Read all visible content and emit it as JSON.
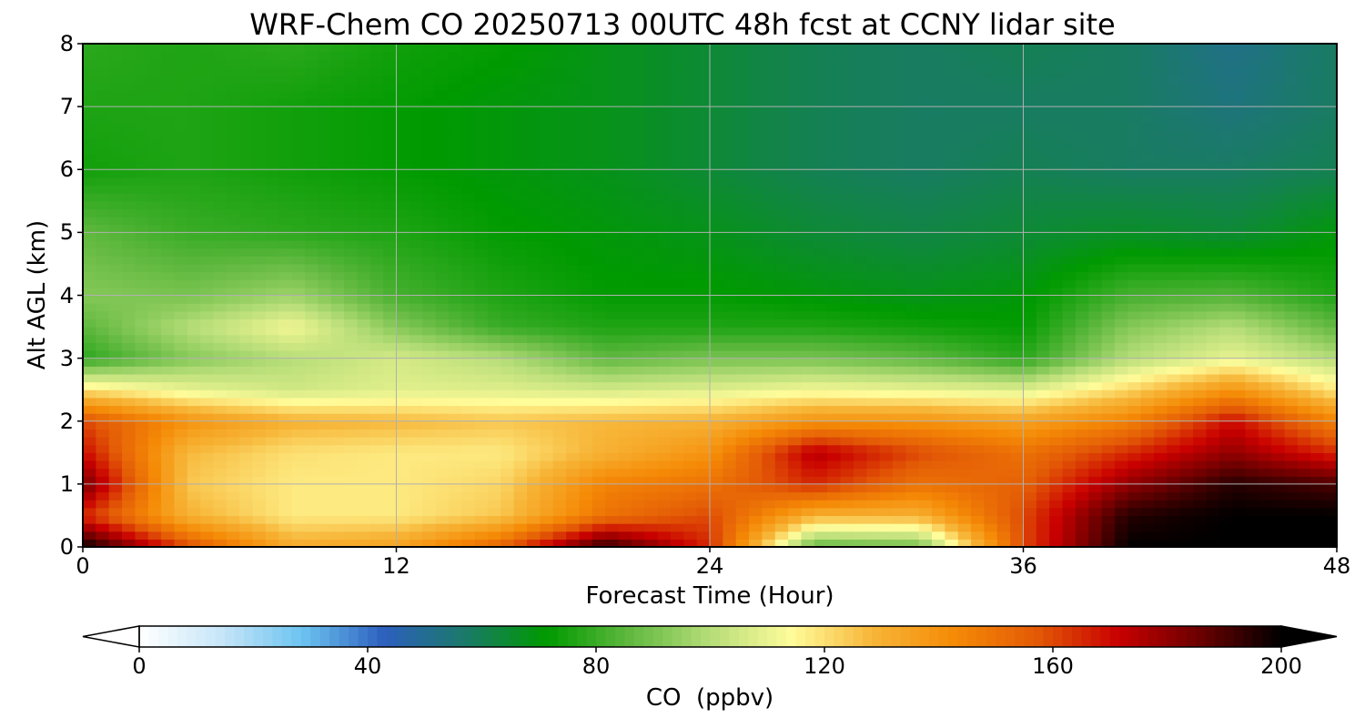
{
  "chart_data": {
    "type": "heatmap",
    "title": "WRF-Chem CO  20250713 00UTC 48h fcst at CCNY lidar site",
    "xlabel": "Forecast Time (Hour)",
    "ylabel": "Alt AGL (km)",
    "xlim": [
      0,
      48
    ],
    "ylim": [
      0,
      8
    ],
    "xticks": [
      0,
      12,
      24,
      36,
      48
    ],
    "yticks": [
      0,
      1,
      2,
      3,
      4,
      5,
      6,
      7,
      8
    ],
    "grid": true,
    "colorbar": {
      "label": "CO  (ppbv)",
      "min": 0,
      "max": 200,
      "ticks": [
        0,
        40,
        80,
        120,
        160,
        200
      ],
      "extend": "both",
      "orientation": "horizontal",
      "location": "bottom"
    },
    "x": [
      0,
      4,
      8,
      12,
      16,
      20,
      24,
      28,
      32,
      36,
      40,
      44,
      48
    ],
    "y": [
      0,
      0.5,
      1,
      1.5,
      2,
      2.5,
      3,
      3.5,
      4,
      5,
      6,
      7,
      8
    ],
    "values": [
      [
        200,
        160,
        132,
        135,
        155,
        195,
        165,
        85,
        88,
        160,
        200,
        200,
        200
      ],
      [
        165,
        130,
        118,
        118,
        125,
        150,
        160,
        130,
        130,
        160,
        195,
        200,
        200
      ],
      [
        185,
        125,
        118,
        118,
        122,
        145,
        150,
        165,
        150,
        155,
        180,
        195,
        190
      ],
      [
        170,
        128,
        120,
        118,
        118,
        130,
        140,
        175,
        160,
        150,
        165,
        180,
        165
      ],
      [
        160,
        140,
        130,
        128,
        125,
        128,
        130,
        140,
        140,
        135,
        145,
        170,
        145
      ],
      [
        120,
        110,
        105,
        108,
        108,
        106,
        108,
        112,
        110,
        108,
        122,
        140,
        118
      ],
      [
        78,
        92,
        100,
        106,
        100,
        86,
        90,
        90,
        86,
        78,
        100,
        110,
        100
      ],
      [
        85,
        100,
        112,
        92,
        80,
        76,
        76,
        76,
        74,
        72,
        92,
        100,
        86
      ],
      [
        92,
        90,
        96,
        82,
        76,
        72,
        72,
        70,
        68,
        70,
        82,
        84,
        76
      ],
      [
        86,
        80,
        78,
        76,
        72,
        70,
        68,
        64,
        62,
        64,
        66,
        64,
        70
      ],
      [
        74,
        76,
        74,
        72,
        70,
        68,
        64,
        60,
        58,
        60,
        58,
        58,
        60
      ],
      [
        76,
        76,
        74,
        72,
        70,
        68,
        64,
        60,
        58,
        58,
        58,
        54,
        58
      ],
      [
        78,
        76,
        78,
        74,
        72,
        68,
        64,
        60,
        58,
        60,
        58,
        52,
        58
      ]
    ],
    "colormap": [
      "#ffffff",
      "#c7e6f8",
      "#6cc3f0",
      "#2d5fbe",
      "#1a7a68",
      "#009a00",
      "#5fb83f",
      "#b6dd78",
      "#fffc9a",
      "#f7b537",
      "#f58a06",
      "#e35a06",
      "#c90000",
      "#6b0000",
      "#000000"
    ]
  }
}
